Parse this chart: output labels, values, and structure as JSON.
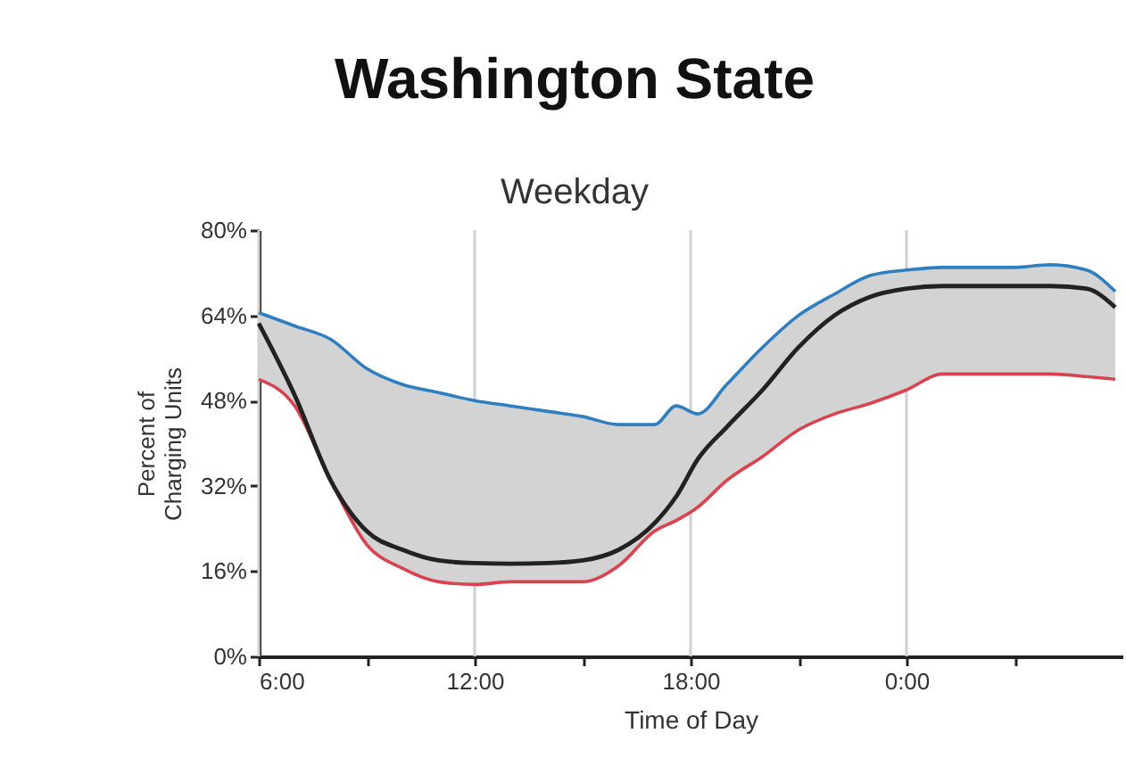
{
  "chart_data": {
    "type": "line",
    "title": "Washington State",
    "subtitle": "Weekday",
    "xlabel": "Time of Day",
    "ylabel": "Percent of\nCharging Units",
    "x": [
      6,
      7,
      8,
      9,
      10,
      11,
      12,
      13,
      14,
      15,
      16,
      17,
      17.6,
      18.2,
      19,
      20,
      21,
      22,
      23,
      24,
      25,
      26,
      27,
      28,
      29,
      29.8
    ],
    "series": [
      {
        "color": "#2f7fc0",
        "values": [
          64.5,
          62,
          59.5,
          54,
          51,
          49.5,
          48,
          47,
          46,
          45,
          43.5,
          43.5,
          47,
          45.5,
          51,
          58,
          64,
          68,
          71.5,
          72.5,
          73,
          73,
          73,
          73.5,
          72.5,
          68.5
        ]
      },
      {
        "color": "#d9434f",
        "values": [
          52,
          47,
          33,
          21,
          16.5,
          14,
          13.5,
          14,
          14,
          14,
          17,
          23.5,
          25.5,
          28,
          33,
          37.5,
          42.5,
          45.5,
          47.5,
          50,
          53,
          53,
          53,
          53,
          52.5,
          52
        ]
      },
      {
        "color": "#222222",
        "values": [
          62.5,
          49,
          33,
          23.5,
          20,
          18,
          17.5,
          17.4,
          17.5,
          18,
          20,
          25,
          30,
          37,
          43,
          50,
          58,
          64,
          67.5,
          69,
          69.5,
          69.5,
          69.5,
          69.5,
          69,
          65.5
        ],
        "lower": [
          52,
          47,
          33,
          21,
          16.5,
          14,
          13.5,
          14,
          14,
          14,
          17,
          23.5,
          25.5,
          28,
          33,
          37.5,
          42.5,
          45.5,
          47.5,
          50,
          53,
          53,
          53,
          53,
          52.5,
          52
        ],
        "upper": [
          64.5,
          62,
          59.5,
          54,
          51,
          49.5,
          48,
          47,
          46,
          45,
          43.5,
          43.5,
          47,
          45.5,
          51,
          58,
          64,
          68,
          71.5,
          72.5,
          73,
          73,
          73,
          73.5,
          72.5,
          68.5
        ]
      }
    ],
    "xlim": [
      6,
      30
    ],
    "xticks": [
      {
        "value": 6,
        "label": "6:00"
      },
      {
        "value": 9,
        "label": null
      },
      {
        "value": 12,
        "label": "12:00"
      },
      {
        "value": 15,
        "label": null
      },
      {
        "value": 18,
        "label": "18:00"
      },
      {
        "value": 21,
        "label": null
      },
      {
        "value": 24,
        "label": "0:00"
      },
      {
        "value": 27,
        "label": null
      }
    ],
    "ylim": [
      0,
      80
    ],
    "yticks": [
      {
        "value": 0,
        "label": "0%"
      },
      {
        "value": 16,
        "label": "16%"
      },
      {
        "value": 32,
        "label": "32%"
      },
      {
        "value": 48,
        "label": "48%"
      },
      {
        "value": 64,
        "label": "64%"
      },
      {
        "value": 80,
        "label": "80%"
      }
    ],
    "grid": "x",
    "marker": "none",
    "line_style": "solid"
  }
}
